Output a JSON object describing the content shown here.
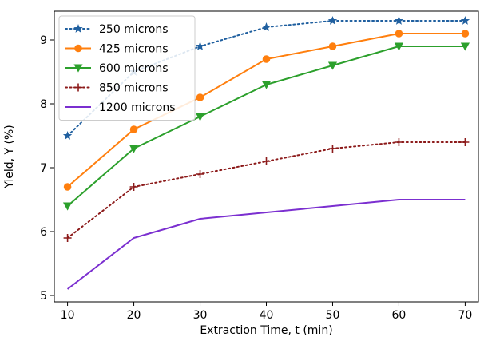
{
  "chart_data": {
    "type": "line",
    "title": "",
    "xlabel": "Extraction Time, t (min)",
    "ylabel": "Yield, Y (%)",
    "x": [
      10,
      20,
      30,
      40,
      50,
      60,
      70
    ],
    "xlim": [
      8,
      72
    ],
    "ylim": [
      4.9,
      9.45
    ],
    "xticks": [
      10,
      20,
      30,
      40,
      50,
      60,
      70
    ],
    "yticks": [
      5,
      6,
      7,
      8,
      9
    ],
    "grid": false,
    "legend_position": "top-left",
    "series": [
      {
        "name": "250 microns",
        "values": [
          7.5,
          8.5,
          8.9,
          9.2,
          9.3,
          9.3,
          9.3
        ],
        "color": "#1f5f9f",
        "line": "dotted",
        "marker": "star"
      },
      {
        "name": "425 microns",
        "values": [
          6.7,
          7.6,
          8.1,
          8.7,
          8.9,
          9.1,
          9.1
        ],
        "color": "#ff7f0e",
        "line": "solid",
        "marker": "circle"
      },
      {
        "name": "600 microns",
        "values": [
          6.4,
          7.3,
          7.8,
          8.3,
          8.6,
          8.9,
          8.9
        ],
        "color": "#2ca02c",
        "line": "solid",
        "marker": "triangle-down"
      },
      {
        "name": "850 microns",
        "values": [
          5.9,
          6.7,
          6.9,
          7.1,
          7.3,
          7.4,
          7.4
        ],
        "color": "#8c1a1a",
        "line": "dotted",
        "marker": "plus"
      },
      {
        "name": "1200 microns",
        "values": [
          5.1,
          5.9,
          6.2,
          6.3,
          6.4,
          6.5,
          6.5
        ],
        "color": "#7b2fd0",
        "line": "solid",
        "marker": "none"
      }
    ]
  }
}
